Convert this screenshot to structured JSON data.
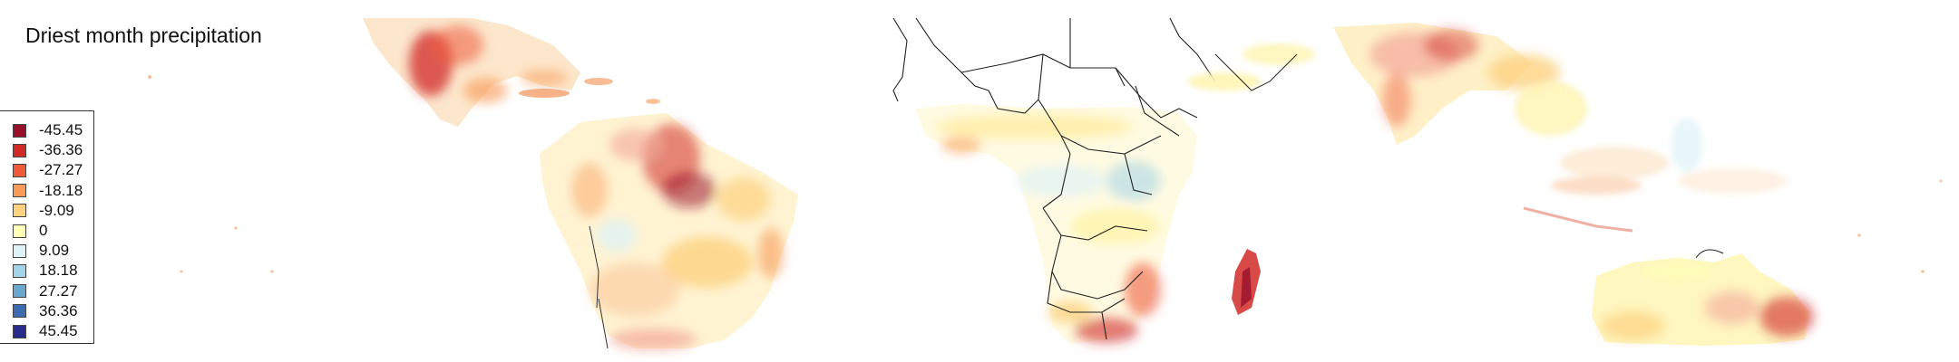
{
  "title": "Driest month precipitation",
  "legend": {
    "items": [
      {
        "label": "-45.45",
        "color": "#99102a"
      },
      {
        "label": "-36.36",
        "color": "#d12a27"
      },
      {
        "label": "-27.27",
        "color": "#ee5a3a"
      },
      {
        "label": "-18.18",
        "color": "#f99b58"
      },
      {
        "label": "-9.09",
        "color": "#fdd27f"
      },
      {
        "label": "0",
        "color": "#ffffb8"
      },
      {
        "label": "9.09",
        "color": "#dff2f6"
      },
      {
        "label": "18.18",
        "color": "#a3d3e6"
      },
      {
        "label": "27.27",
        "color": "#6aa7cf"
      },
      {
        "label": "36.36",
        "color": "#3c6db2"
      },
      {
        "label": "45.45",
        "color": "#2a2b8c"
      }
    ]
  },
  "map": {
    "extent": "tropics",
    "regions": [
      "Central America",
      "South America",
      "Africa",
      "Madagascar",
      "South Asia",
      "Southeast Asia",
      "Australia"
    ],
    "boundaries": "national borders shown for Africa"
  }
}
